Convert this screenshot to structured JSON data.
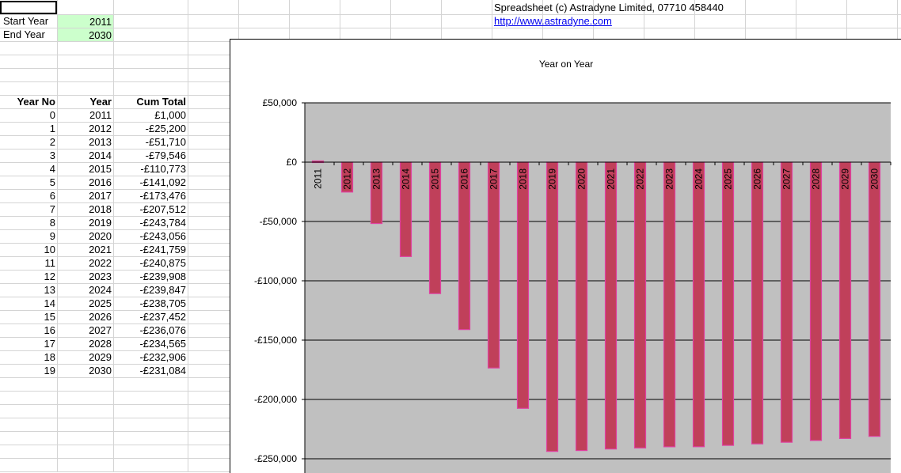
{
  "header": {
    "copyright": "Spreadsheet (c) Astradyne Limited, 07710 458440",
    "url": "http://www.astradyne.com"
  },
  "inputs": {
    "start_label": "Start Year",
    "start_value": "2011",
    "end_label": "End Year",
    "end_value": "2030"
  },
  "table": {
    "headers": [
      "Year No",
      "Year",
      "Cum Total"
    ],
    "rows": [
      [
        "0",
        "2011",
        "£1,000"
      ],
      [
        "1",
        "2012",
        "-£25,200"
      ],
      [
        "2",
        "2013",
        "-£51,710"
      ],
      [
        "3",
        "2014",
        "-£79,546"
      ],
      [
        "4",
        "2015",
        "-£110,773"
      ],
      [
        "5",
        "2016",
        "-£141,092"
      ],
      [
        "6",
        "2017",
        "-£173,476"
      ],
      [
        "7",
        "2018",
        "-£207,512"
      ],
      [
        "8",
        "2019",
        "-£243,784"
      ],
      [
        "9",
        "2020",
        "-£243,056"
      ],
      [
        "10",
        "2021",
        "-£241,759"
      ],
      [
        "11",
        "2022",
        "-£240,875"
      ],
      [
        "12",
        "2023",
        "-£239,908"
      ],
      [
        "13",
        "2024",
        "-£239,847"
      ],
      [
        "14",
        "2025",
        "-£238,705"
      ],
      [
        "15",
        "2026",
        "-£237,452"
      ],
      [
        "16",
        "2027",
        "-£236,076"
      ],
      [
        "17",
        "2028",
        "-£234,565"
      ],
      [
        "18",
        "2029",
        "-£232,906"
      ],
      [
        "19",
        "2030",
        "-£231,084"
      ]
    ]
  },
  "chart_data": {
    "type": "bar",
    "title": "Year on Year",
    "categories": [
      "2011",
      "2012",
      "2013",
      "2014",
      "2015",
      "2016",
      "2017",
      "2018",
      "2019",
      "2020",
      "2021",
      "2022",
      "2023",
      "2024",
      "2025",
      "2026",
      "2027",
      "2028",
      "2029",
      "2030"
    ],
    "values": [
      1000,
      -25200,
      -51710,
      -79546,
      -110773,
      -141092,
      -173476,
      -207512,
      -243784,
      -243056,
      -241759,
      -240875,
      -239908,
      -239847,
      -238705,
      -237452,
      -236076,
      -234565,
      -232906,
      -231084
    ],
    "y_ticks": [
      50000,
      0,
      -50000,
      -100000,
      -150000,
      -200000,
      -250000
    ],
    "y_tick_labels": [
      "£50,000",
      "£0",
      "-£50,000",
      "-£100,000",
      "-£150,000",
      "-£200,000",
      "-£250,000"
    ],
    "ylim": [
      -280000,
      50000
    ],
    "grid": true,
    "colors": {
      "plot_bg": "#c0c0c0",
      "bar_fill": "#c0405a",
      "bar_edge": "#e040a0"
    }
  }
}
